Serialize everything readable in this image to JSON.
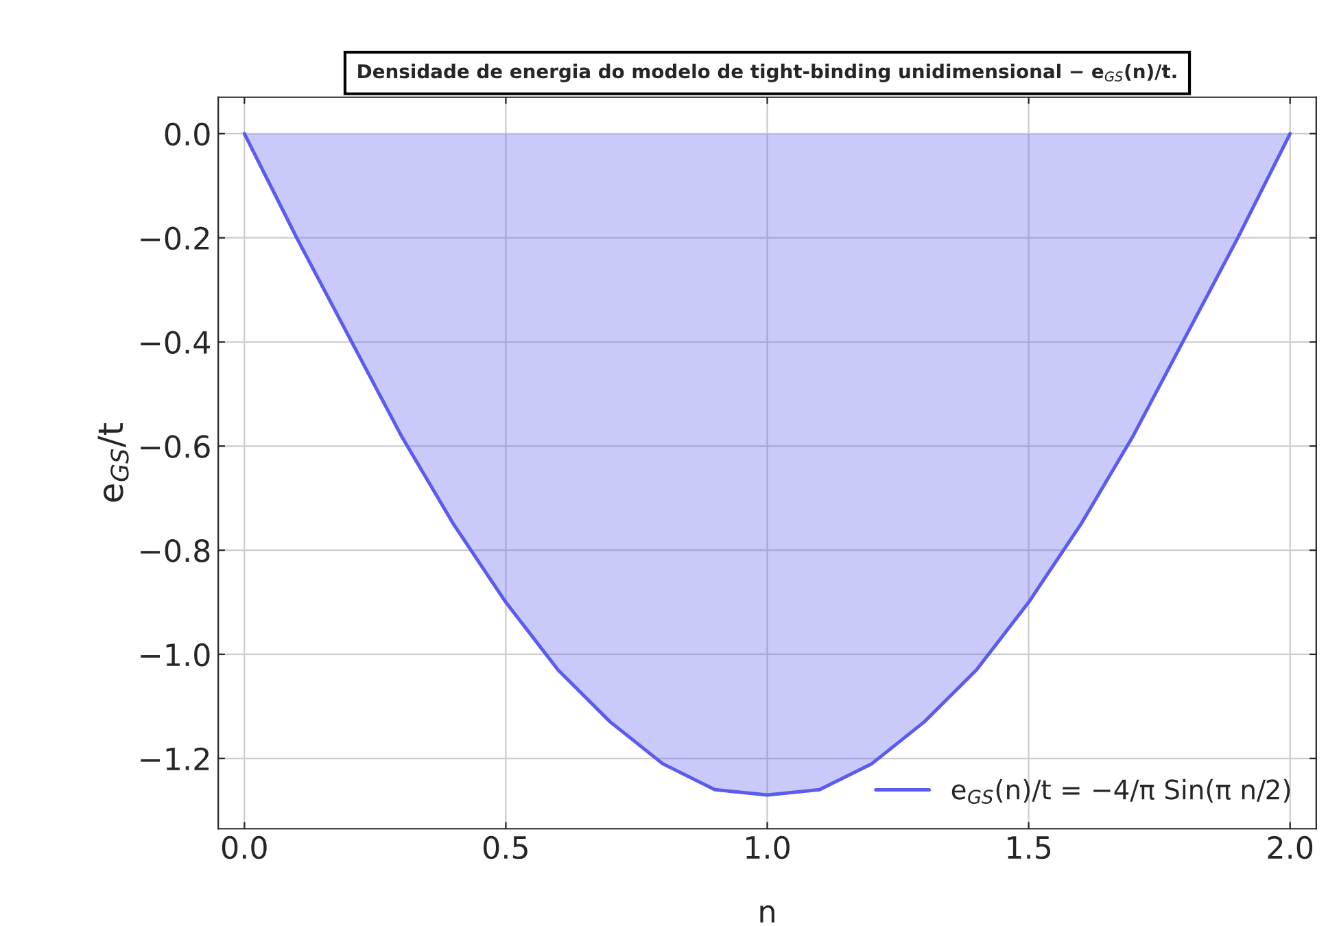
{
  "chart_data": {
    "type": "area",
    "title": "Densidade de energia do modelo de tight-binding unidimensional − e$_{GS}$(n)/t.",
    "xlabel": "n",
    "ylabel": "e$_{GS}$/t",
    "x": [
      0,
      0.1,
      0.2,
      0.3,
      0.4,
      0.5,
      0.6,
      0.7,
      0.8,
      0.9,
      1.0,
      1.1,
      1.2,
      1.3,
      1.4,
      1.5,
      1.6,
      1.7,
      1.8,
      1.9,
      2.0
    ],
    "series": [
      {
        "name": "e$_{GS}$(n)/t = −4/π Sin(π n/2)",
        "color": "#5b5bf0",
        "values": [
          0,
          -0.2,
          -0.39,
          -0.58,
          -0.75,
          -0.9,
          -1.03,
          -1.13,
          -1.21,
          -1.26,
          -1.27,
          -1.26,
          -1.21,
          -1.13,
          -1.03,
          -0.9,
          -0.75,
          -0.58,
          -0.39,
          -0.2,
          0
        ]
      }
    ],
    "xlim": [
      -0.05,
      2.05
    ],
    "ylim": [
      -1.335,
      0.07
    ],
    "xticks": [
      {
        "value": 0,
        "label": "0.0"
      },
      {
        "value": 0.5,
        "label": "0.5"
      },
      {
        "value": 1.0,
        "label": "1.0"
      },
      {
        "value": 1.5,
        "label": "1.5"
      },
      {
        "value": 2.0,
        "label": "2.0"
      }
    ],
    "yticks": [
      {
        "value": 0,
        "label": "0.0"
      },
      {
        "value": -0.2,
        "label": "−0.2"
      },
      {
        "value": -0.4,
        "label": "−0.4"
      },
      {
        "value": -0.6,
        "label": "−0.6"
      },
      {
        "value": -0.8,
        "label": "−0.8"
      },
      {
        "value": -1.0,
        "label": "−1.0"
      },
      {
        "value": -1.2,
        "label": "−1.2"
      }
    ],
    "grid": true,
    "legend": "bottom right"
  }
}
